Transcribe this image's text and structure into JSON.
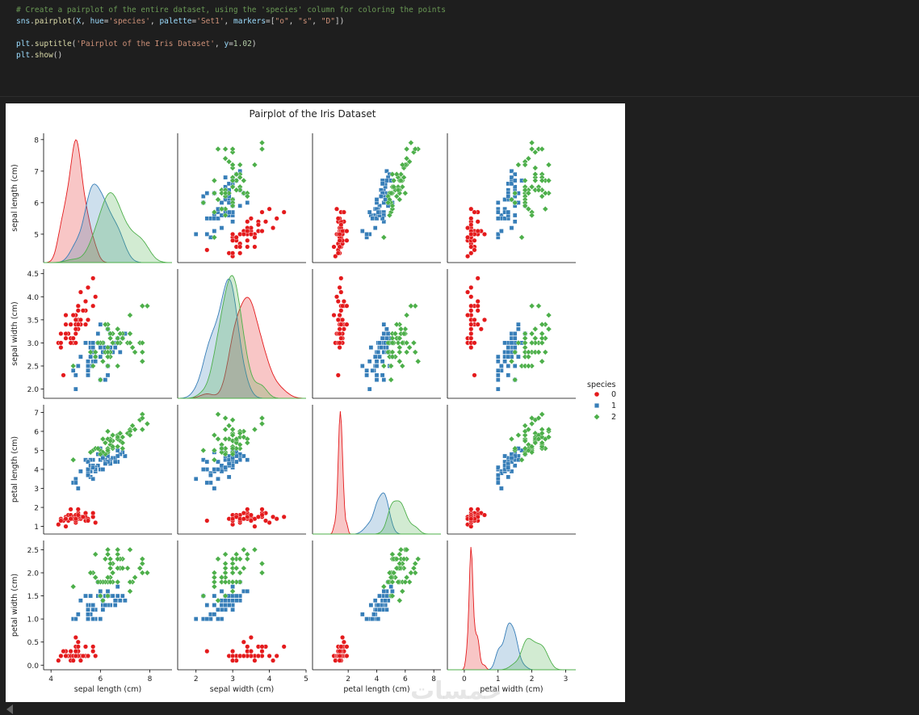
{
  "code": {
    "lines": [
      [
        {
          "t": "# Create a pairplot of the entire dataset, using the 'species' column for coloring the points",
          "c": "c-com"
        }
      ],
      [
        {
          "t": "sns",
          "c": "c-var"
        },
        {
          "t": ".",
          "c": "c-pun"
        },
        {
          "t": "pairplot",
          "c": "c-fn"
        },
        {
          "t": "(",
          "c": "c-pun"
        },
        {
          "t": "X",
          "c": "c-var"
        },
        {
          "t": ", ",
          "c": "c-pun"
        },
        {
          "t": "hue",
          "c": "c-var"
        },
        {
          "t": "=",
          "c": "c-pun"
        },
        {
          "t": "'species'",
          "c": "c-str"
        },
        {
          "t": ", ",
          "c": "c-pun"
        },
        {
          "t": "palette",
          "c": "c-var"
        },
        {
          "t": "=",
          "c": "c-pun"
        },
        {
          "t": "'Set1'",
          "c": "c-str"
        },
        {
          "t": ", ",
          "c": "c-pun"
        },
        {
          "t": "markers",
          "c": "c-var"
        },
        {
          "t": "=[",
          "c": "c-pun"
        },
        {
          "t": "\"o\"",
          "c": "c-str"
        },
        {
          "t": ", ",
          "c": "c-pun"
        },
        {
          "t": "\"s\"",
          "c": "c-str"
        },
        {
          "t": ", ",
          "c": "c-pun"
        },
        {
          "t": "\"D\"",
          "c": "c-str"
        },
        {
          "t": "])",
          "c": "c-pun"
        }
      ],
      [],
      [
        {
          "t": "plt",
          "c": "c-var"
        },
        {
          "t": ".",
          "c": "c-pun"
        },
        {
          "t": "suptitle",
          "c": "c-fn"
        },
        {
          "t": "(",
          "c": "c-pun"
        },
        {
          "t": "'Pairplot of the Iris Dataset'",
          "c": "c-str"
        },
        {
          "t": ", ",
          "c": "c-pun"
        },
        {
          "t": "y",
          "c": "c-var"
        },
        {
          "t": "=",
          "c": "c-pun"
        },
        {
          "t": "1.02",
          "c": "c-num"
        },
        {
          "t": ")",
          "c": "c-pun"
        }
      ],
      [
        {
          "t": "plt",
          "c": "c-var"
        },
        {
          "t": ".",
          "c": "c-pun"
        },
        {
          "t": "show",
          "c": "c-fn"
        },
        {
          "t": "()",
          "c": "c-pun"
        }
      ]
    ]
  },
  "watermark": "خمسات",
  "chart_data": {
    "type": "scatter",
    "title": "Pairplot of the Iris Dataset",
    "variables": [
      "sepal length (cm)",
      "sepal width (cm)",
      "petal length (cm)",
      "petal width (cm)"
    ],
    "ranges": [
      [
        4.1,
        8.2
      ],
      [
        1.8,
        4.6
      ],
      [
        0.6,
        7.4
      ],
      [
        -0.1,
        2.7
      ]
    ],
    "ticks": [
      [
        5,
        6,
        7,
        8
      ],
      [
        2.0,
        2.5,
        3.0,
        3.5,
        4.0,
        4.5
      ],
      [
        1,
        2,
        3,
        4,
        5,
        6,
        7
      ],
      [
        0.0,
        0.5,
        1.0,
        1.5,
        2.0,
        2.5
      ]
    ],
    "xticks": [
      [
        4,
        6,
        8
      ],
      [
        2,
        3,
        4,
        5
      ],
      [
        2,
        4,
        6,
        8
      ],
      [
        0,
        1,
        2,
        3
      ]
    ],
    "xranges": [
      [
        3.7,
        8.9
      ],
      [
        1.5,
        5.0
      ],
      [
        -0.5,
        8.5
      ],
      [
        -0.5,
        3.3
      ]
    ],
    "tick_labels": {
      "y": [
        [
          "5",
          "6",
          "7",
          "8"
        ],
        [
          "2.0",
          "2.5",
          "3.0",
          "3.5",
          "4.0",
          "4.5"
        ],
        [
          "1",
          "2",
          "3",
          "4",
          "5",
          "6",
          "7"
        ],
        [
          "0.0",
          "0.5",
          "1.0",
          "1.5",
          "2.0",
          "2.5"
        ]
      ],
      "x": [
        [
          "4",
          "6",
          "8"
        ],
        [
          "2",
          "3",
          "4",
          "5"
        ],
        [
          "2",
          "4",
          "6",
          "8"
        ],
        [
          "0",
          "1",
          "2",
          "3"
        ]
      ]
    },
    "hue": "species",
    "palette": "Set1",
    "legend": {
      "title": "species",
      "entries": [
        "0",
        "1",
        "2"
      ],
      "placement": "right-center"
    },
    "series": [
      {
        "name": "0",
        "color": "#e41a1c",
        "marker": "o",
        "points": [
          [
            5.1,
            3.5,
            1.4,
            0.2
          ],
          [
            4.9,
            3.0,
            1.4,
            0.2
          ],
          [
            4.7,
            3.2,
            1.3,
            0.2
          ],
          [
            4.6,
            3.1,
            1.5,
            0.2
          ],
          [
            5.0,
            3.6,
            1.4,
            0.2
          ],
          [
            5.4,
            3.9,
            1.7,
            0.4
          ],
          [
            4.6,
            3.4,
            1.4,
            0.3
          ],
          [
            5.0,
            3.4,
            1.5,
            0.2
          ],
          [
            4.4,
            2.9,
            1.4,
            0.2
          ],
          [
            4.9,
            3.1,
            1.5,
            0.1
          ],
          [
            5.4,
            3.7,
            1.5,
            0.2
          ],
          [
            4.8,
            3.4,
            1.6,
            0.2
          ],
          [
            4.8,
            3.0,
            1.4,
            0.1
          ],
          [
            4.3,
            3.0,
            1.1,
            0.1
          ],
          [
            5.8,
            4.0,
            1.2,
            0.2
          ],
          [
            5.7,
            4.4,
            1.5,
            0.4
          ],
          [
            5.4,
            3.9,
            1.3,
            0.4
          ],
          [
            5.1,
            3.5,
            1.4,
            0.3
          ],
          [
            5.7,
            3.8,
            1.7,
            0.3
          ],
          [
            5.1,
            3.8,
            1.5,
            0.3
          ],
          [
            5.4,
            3.4,
            1.7,
            0.2
          ],
          [
            5.1,
            3.7,
            1.5,
            0.4
          ],
          [
            4.6,
            3.6,
            1.0,
            0.2
          ],
          [
            5.1,
            3.3,
            1.7,
            0.5
          ],
          [
            4.8,
            3.4,
            1.9,
            0.2
          ],
          [
            5.0,
            3.0,
            1.6,
            0.2
          ],
          [
            5.0,
            3.4,
            1.6,
            0.4
          ],
          [
            5.2,
            3.5,
            1.5,
            0.2
          ],
          [
            5.2,
            3.4,
            1.4,
            0.2
          ],
          [
            4.7,
            3.2,
            1.6,
            0.2
          ],
          [
            4.8,
            3.1,
            1.6,
            0.2
          ],
          [
            5.4,
            3.4,
            1.5,
            0.4
          ],
          [
            5.2,
            4.1,
            1.5,
            0.1
          ],
          [
            5.5,
            4.2,
            1.4,
            0.2
          ],
          [
            4.9,
            3.1,
            1.5,
            0.2
          ],
          [
            5.0,
            3.2,
            1.2,
            0.2
          ],
          [
            5.5,
            3.5,
            1.3,
            0.2
          ],
          [
            4.9,
            3.6,
            1.4,
            0.1
          ],
          [
            4.4,
            3.0,
            1.3,
            0.2
          ],
          [
            5.1,
            3.4,
            1.5,
            0.2
          ],
          [
            5.0,
            3.5,
            1.3,
            0.3
          ],
          [
            4.5,
            2.3,
            1.3,
            0.3
          ],
          [
            4.4,
            3.2,
            1.3,
            0.2
          ],
          [
            5.0,
            3.5,
            1.6,
            0.6
          ],
          [
            5.1,
            3.8,
            1.9,
            0.4
          ],
          [
            4.8,
            3.0,
            1.4,
            0.3
          ],
          [
            5.1,
            3.8,
            1.6,
            0.2
          ],
          [
            4.6,
            3.2,
            1.4,
            0.2
          ],
          [
            5.3,
            3.7,
            1.5,
            0.2
          ],
          [
            5.0,
            3.3,
            1.4,
            0.2
          ]
        ]
      },
      {
        "name": "1",
        "color": "#377eb8",
        "marker": "s",
        "points": [
          [
            7.0,
            3.2,
            4.7,
            1.4
          ],
          [
            6.4,
            3.2,
            4.5,
            1.5
          ],
          [
            6.9,
            3.1,
            4.9,
            1.5
          ],
          [
            5.5,
            2.3,
            4.0,
            1.3
          ],
          [
            6.5,
            2.8,
            4.6,
            1.5
          ],
          [
            5.7,
            2.8,
            4.5,
            1.3
          ],
          [
            6.3,
            3.3,
            4.7,
            1.6
          ],
          [
            4.9,
            2.4,
            3.3,
            1.0
          ],
          [
            6.6,
            2.9,
            4.6,
            1.3
          ],
          [
            5.2,
            2.7,
            3.9,
            1.4
          ],
          [
            5.0,
            2.0,
            3.5,
            1.0
          ],
          [
            5.9,
            3.0,
            4.2,
            1.5
          ],
          [
            6.0,
            2.2,
            4.0,
            1.0
          ],
          [
            6.1,
            2.9,
            4.7,
            1.4
          ],
          [
            5.6,
            2.9,
            3.6,
            1.3
          ],
          [
            6.7,
            3.1,
            4.4,
            1.4
          ],
          [
            5.6,
            3.0,
            4.5,
            1.5
          ],
          [
            5.8,
            2.7,
            4.1,
            1.0
          ],
          [
            6.2,
            2.2,
            4.5,
            1.5
          ],
          [
            5.6,
            2.5,
            3.9,
            1.1
          ],
          [
            5.9,
            3.2,
            4.8,
            1.8
          ],
          [
            6.1,
            2.8,
            4.0,
            1.3
          ],
          [
            6.3,
            2.5,
            4.9,
            1.5
          ],
          [
            6.1,
            2.8,
            4.7,
            1.2
          ],
          [
            6.4,
            2.9,
            4.3,
            1.3
          ],
          [
            6.6,
            3.0,
            4.4,
            1.4
          ],
          [
            6.8,
            2.8,
            4.8,
            1.4
          ],
          [
            6.7,
            3.0,
            5.0,
            1.7
          ],
          [
            6.0,
            2.9,
            4.5,
            1.5
          ],
          [
            5.7,
            2.6,
            3.5,
            1.0
          ],
          [
            5.5,
            2.4,
            3.8,
            1.1
          ],
          [
            5.5,
            2.4,
            3.7,
            1.0
          ],
          [
            5.8,
            2.7,
            3.9,
            1.2
          ],
          [
            6.0,
            2.7,
            5.1,
            1.6
          ],
          [
            5.4,
            3.0,
            4.5,
            1.5
          ],
          [
            6.0,
            3.4,
            4.5,
            1.6
          ],
          [
            6.7,
            3.1,
            4.7,
            1.5
          ],
          [
            6.3,
            2.3,
            4.4,
            1.3
          ],
          [
            5.6,
            3.0,
            4.1,
            1.3
          ],
          [
            5.5,
            2.5,
            4.0,
            1.3
          ],
          [
            5.5,
            2.6,
            4.4,
            1.2
          ],
          [
            6.1,
            3.0,
            4.6,
            1.4
          ],
          [
            5.8,
            2.6,
            4.0,
            1.2
          ],
          [
            5.0,
            2.3,
            3.3,
            1.0
          ],
          [
            5.6,
            2.7,
            4.2,
            1.3
          ],
          [
            5.7,
            3.0,
            4.2,
            1.2
          ],
          [
            5.7,
            2.9,
            4.2,
            1.3
          ],
          [
            6.2,
            2.9,
            4.3,
            1.3
          ],
          [
            5.1,
            2.5,
            3.0,
            1.1
          ],
          [
            5.7,
            2.8,
            4.1,
            1.3
          ]
        ]
      },
      {
        "name": "2",
        "color": "#4daf4a",
        "marker": "D",
        "points": [
          [
            6.3,
            3.3,
            6.0,
            2.5
          ],
          [
            5.8,
            2.7,
            5.1,
            1.9
          ],
          [
            7.1,
            3.0,
            5.9,
            2.1
          ],
          [
            6.3,
            2.9,
            5.6,
            1.8
          ],
          [
            6.5,
            3.0,
            5.8,
            2.2
          ],
          [
            7.6,
            3.0,
            6.6,
            2.1
          ],
          [
            4.9,
            2.5,
            4.5,
            1.7
          ],
          [
            7.3,
            2.9,
            6.3,
            1.8
          ],
          [
            6.7,
            2.5,
            5.8,
            1.8
          ],
          [
            7.2,
            3.6,
            6.1,
            2.5
          ],
          [
            6.5,
            3.2,
            5.1,
            2.0
          ],
          [
            6.4,
            2.7,
            5.3,
            1.9
          ],
          [
            6.8,
            3.0,
            5.5,
            2.1
          ],
          [
            5.7,
            2.5,
            5.0,
            2.0
          ],
          [
            5.8,
            2.8,
            5.1,
            2.4
          ],
          [
            6.4,
            3.2,
            5.3,
            2.3
          ],
          [
            6.5,
            3.0,
            5.5,
            1.8
          ],
          [
            7.7,
            3.8,
            6.7,
            2.2
          ],
          [
            7.7,
            2.6,
            6.9,
            2.3
          ],
          [
            6.0,
            2.2,
            5.0,
            1.5
          ],
          [
            6.9,
            3.2,
            5.7,
            2.3
          ],
          [
            5.6,
            2.8,
            4.9,
            2.0
          ],
          [
            7.7,
            2.8,
            6.7,
            2.0
          ],
          [
            6.3,
            2.7,
            4.9,
            1.8
          ],
          [
            6.7,
            3.3,
            5.7,
            2.1
          ],
          [
            7.2,
            3.2,
            6.0,
            1.8
          ],
          [
            6.2,
            2.8,
            4.8,
            1.8
          ],
          [
            6.1,
            3.0,
            4.9,
            1.8
          ],
          [
            6.4,
            2.8,
            5.6,
            2.1
          ],
          [
            7.2,
            3.0,
            5.8,
            1.6
          ],
          [
            7.4,
            2.8,
            6.1,
            1.9
          ],
          [
            7.9,
            3.8,
            6.4,
            2.0
          ],
          [
            6.4,
            2.8,
            5.6,
            2.2
          ],
          [
            6.3,
            2.8,
            5.1,
            1.5
          ],
          [
            6.1,
            2.6,
            5.6,
            1.4
          ],
          [
            7.7,
            3.0,
            6.1,
            2.3
          ],
          [
            6.3,
            3.4,
            5.6,
            2.4
          ],
          [
            6.4,
            3.1,
            5.5,
            1.8
          ],
          [
            6.0,
            3.0,
            4.8,
            1.8
          ],
          [
            6.9,
            3.1,
            5.4,
            2.1
          ],
          [
            6.7,
            3.1,
            5.6,
            2.4
          ],
          [
            6.9,
            3.1,
            5.1,
            2.3
          ],
          [
            5.8,
            2.7,
            5.1,
            1.9
          ],
          [
            6.8,
            3.2,
            5.9,
            2.3
          ],
          [
            6.7,
            3.3,
            5.7,
            2.5
          ],
          [
            6.7,
            3.0,
            5.2,
            2.3
          ],
          [
            6.3,
            2.5,
            5.0,
            1.9
          ],
          [
            6.5,
            3.0,
            5.2,
            2.0
          ],
          [
            6.2,
            3.4,
            5.4,
            2.3
          ],
          [
            5.9,
            3.0,
            5.1,
            1.8
          ]
        ]
      }
    ]
  }
}
